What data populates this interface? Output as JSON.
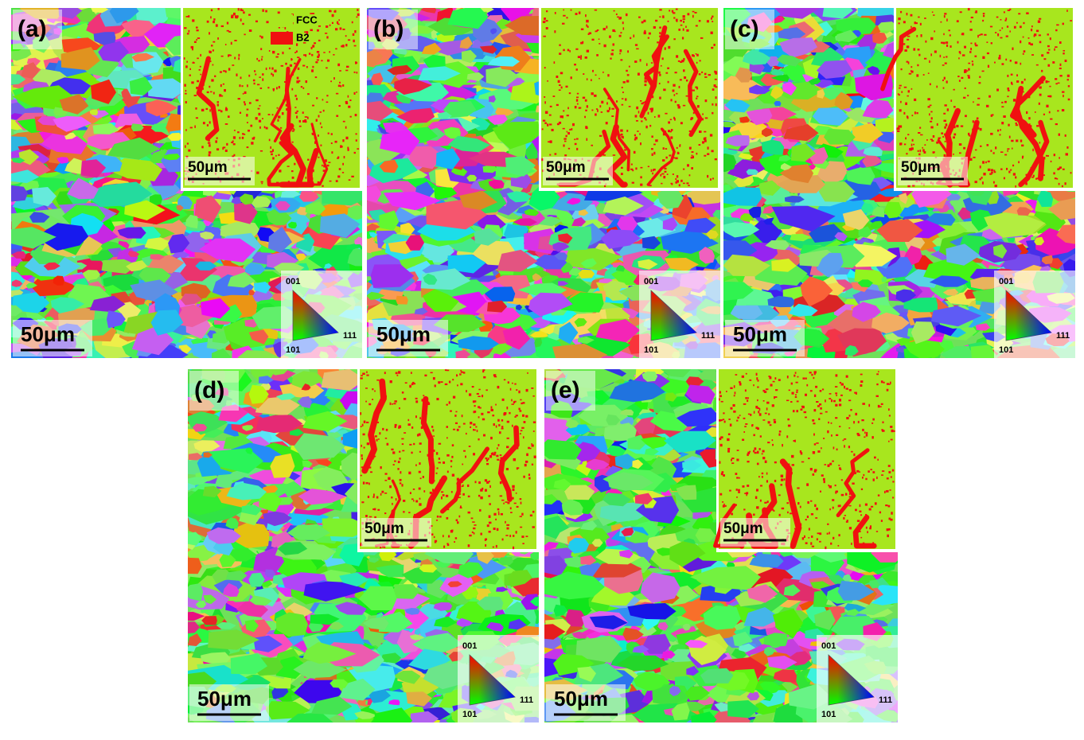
{
  "legend": {
    "items": [
      {
        "label": "FCC",
        "color": "#a8e61e"
      },
      {
        "label": "B2",
        "color": "#f01010"
      }
    ]
  },
  "panels": [
    {
      "label": "(a)",
      "scale_bar": "50μm",
      "inset_scale_bar": "50μm",
      "ipf_key": {
        "top": "001",
        "left": "101",
        "right": "111"
      }
    },
    {
      "label": "(b)",
      "scale_bar": "50μm",
      "inset_scale_bar": "50μm",
      "ipf_key": {
        "top": "001",
        "left": "101",
        "right": "111"
      }
    },
    {
      "label": "(c)",
      "scale_bar": "50μm",
      "inset_scale_bar": "50μm",
      "ipf_key": {
        "top": "001",
        "left": "101",
        "right": "111"
      }
    },
    {
      "label": "(d)",
      "scale_bar": "50μm",
      "inset_scale_bar": "50μm",
      "ipf_key": {
        "top": "001",
        "left": "101",
        "right": "111"
      }
    },
    {
      "label": "(e)",
      "scale_bar": "50μm",
      "inset_scale_bar": "50μm",
      "ipf_key": {
        "top": "001",
        "left": "101",
        "right": "111"
      }
    }
  ]
}
